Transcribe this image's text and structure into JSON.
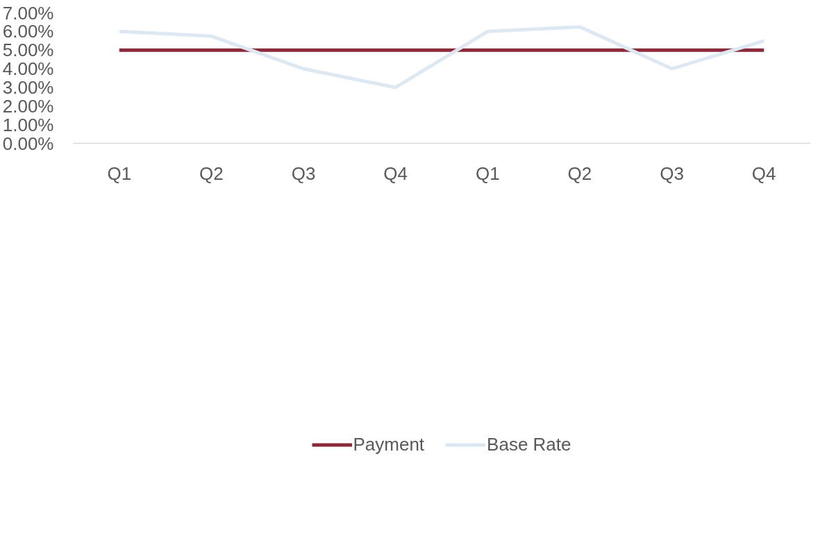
{
  "chart_data": {
    "type": "line",
    "categories": [
      "Q1",
      "Q2",
      "Q3",
      "Q4",
      "Q1",
      "Q2",
      "Q3",
      "Q4"
    ],
    "series": [
      {
        "name": "Payment",
        "color": "#8b2a3a",
        "values": [
          5,
          5,
          5,
          5,
          5,
          5,
          5,
          5
        ]
      },
      {
        "name": "Base Rate",
        "color": "#dee8f3",
        "values": [
          6.0,
          5.75,
          4.0,
          3.0,
          6.0,
          6.25,
          4.0,
          5.5
        ]
      }
    ],
    "ylim": [
      0,
      7
    ],
    "yticks": [
      {
        "value": 0,
        "label": "0.00%"
      },
      {
        "value": 1,
        "label": "1.00%"
      },
      {
        "value": 2,
        "label": "2.00%"
      },
      {
        "value": 3,
        "label": "3.00%"
      },
      {
        "value": 4,
        "label": "4.00%"
      },
      {
        "value": 5,
        "label": "5.00%"
      },
      {
        "value": 6,
        "label": "6.00%"
      },
      {
        "value": 7,
        "label": "7.00%"
      }
    ],
    "grid": false,
    "legend": "bottom",
    "marker": "none",
    "line_style": "solid"
  }
}
